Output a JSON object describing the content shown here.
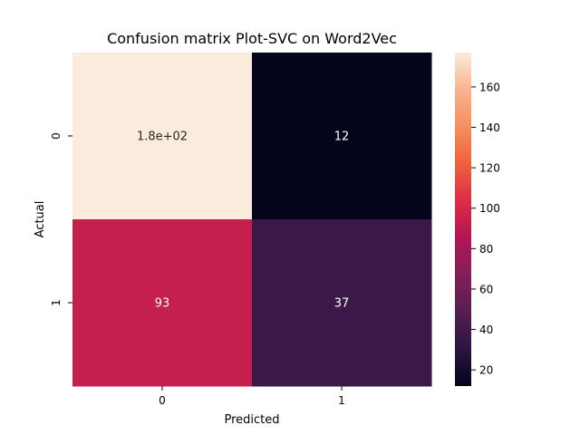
{
  "chart_data": {
    "type": "heatmap",
    "title": "Confusion matrix Plot-SVC on Word2Vec",
    "xlabel": "Predicted",
    "ylabel": "Actual",
    "x_categories": [
      "0",
      "1"
    ],
    "y_categories": [
      "0",
      "1"
    ],
    "values": [
      [
        177,
        12
      ],
      [
        93,
        37
      ]
    ],
    "cell_labels": [
      [
        "1.8e+02",
        "12"
      ],
      [
        "93",
        "37"
      ]
    ],
    "colorbar": {
      "ticks": [
        20,
        40,
        60,
        80,
        100,
        120,
        140,
        160
      ],
      "tick_labels": [
        "20",
        "40",
        "60",
        "80",
        "100",
        "120",
        "140",
        "160"
      ],
      "vmin": 12,
      "vmax": 177
    },
    "colormap": [
      "#03051a",
      "#2b1442",
      "#551e4f",
      "#841e5a",
      "#b31657",
      "#dd2c45",
      "#f0613d",
      "#f58f5f",
      "#f7b48f",
      "#faebdd"
    ]
  }
}
